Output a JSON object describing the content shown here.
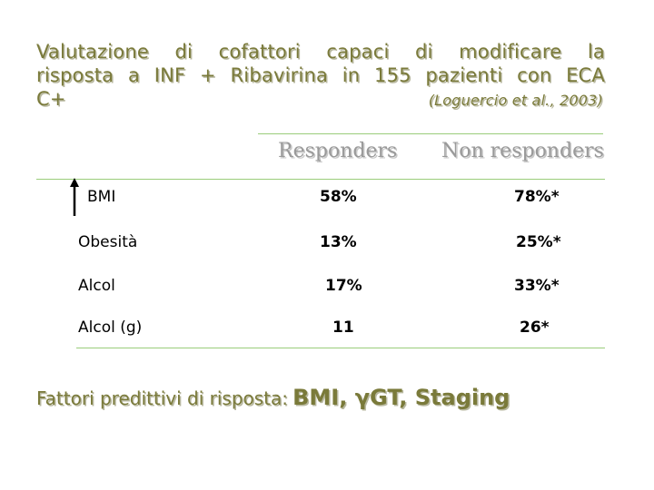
{
  "title": {
    "line1": [
      "Valutazione",
      "di",
      "cofattori",
      "capaci",
      "di",
      "modificare",
      "la"
    ],
    "line2": [
      "risposta",
      "a",
      "INF",
      "+",
      "Ribavirina",
      "in",
      "155",
      "pazienti",
      "con",
      "ECA"
    ],
    "line3": "C+",
    "citation": "(Loguercio et al., 2003)"
  },
  "table": {
    "headers": [
      "Responders",
      "Non responders"
    ],
    "rows": [
      {
        "label": "BMI",
        "responders": "58%",
        "non_responders": "78%*"
      },
      {
        "label": "Obesità",
        "responders": "13%",
        "non_responders": "25%*"
      },
      {
        "label": "Alcol",
        "responders": "17%",
        "non_responders": "33%*"
      },
      {
        "label": "Alcol (g)",
        "responders": "11",
        "non_responders": "26*"
      }
    ],
    "arrow_icon": "up-arrow-icon"
  },
  "footer": {
    "lead": "Fattori predittivi di risposta:",
    "items": "BMI, γGT, Staging"
  },
  "colors": {
    "title": "#7a7a3a",
    "rule": "#9acd7a",
    "header": "#9a9a9a"
  }
}
